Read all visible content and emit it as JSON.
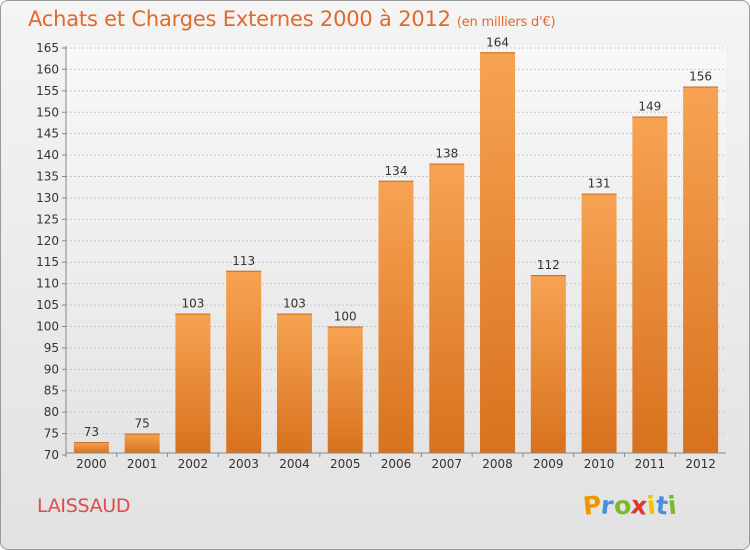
{
  "header": {
    "title": "Achats et Charges Externes 2000 à 2012",
    "subtitle": "(en milliers d'€)"
  },
  "footer": {
    "commune": "LAISSAUD",
    "logo_letters": [
      "P",
      "r",
      "o",
      "x",
      "i",
      "t",
      "i"
    ],
    "logo_colors": [
      "#f29400",
      "#4a90d9",
      "#7ab929",
      "#e2372d",
      "#f2c300",
      "#4a90d9",
      "#7ab929"
    ]
  },
  "chart_data": {
    "type": "bar",
    "categories": [
      "2000",
      "2001",
      "2002",
      "2003",
      "2004",
      "2005",
      "2006",
      "2007",
      "2008",
      "2009",
      "2010",
      "2011",
      "2012"
    ],
    "values": [
      73,
      75,
      103,
      113,
      103,
      100,
      134,
      138,
      164,
      112,
      131,
      149,
      156
    ],
    "ylim": [
      70,
      165
    ],
    "yticks": [
      70,
      75,
      80,
      85,
      90,
      95,
      100,
      105,
      110,
      115,
      120,
      125,
      130,
      135,
      140,
      145,
      150,
      155,
      160,
      165
    ],
    "grid": true,
    "bar_color": "#f08a30"
  }
}
